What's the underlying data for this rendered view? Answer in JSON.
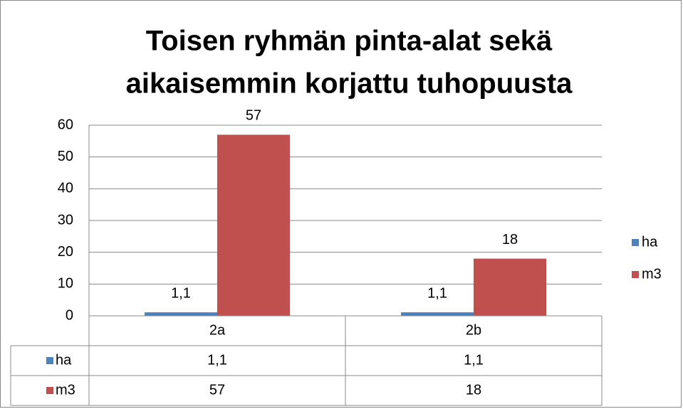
{
  "chart_data": {
    "type": "bar",
    "title": [
      "Toisen ryhmän pinta-alat sekä",
      "aikaisemmin korjattu tuhopuusta"
    ],
    "categories": [
      "2a",
      "2b"
    ],
    "series": [
      {
        "name": "ha",
        "color": "#4f81bd",
        "values": [
          1.1,
          1.1
        ],
        "value_labels": [
          "1,1",
          "1,1"
        ]
      },
      {
        "name": "m3",
        "color": "#c0504d",
        "values": [
          57,
          18
        ],
        "value_labels": [
          "57",
          "18"
        ]
      }
    ],
    "ylim": [
      0,
      60
    ],
    "yticks": [
      0,
      10,
      20,
      30,
      40,
      50,
      60
    ],
    "grid": true,
    "legend": "right",
    "data_table": true
  }
}
